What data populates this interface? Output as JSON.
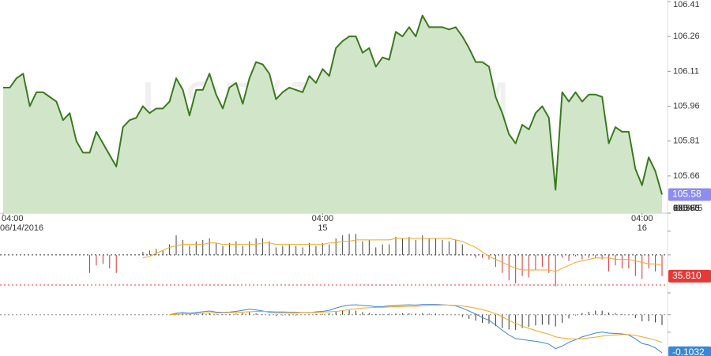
{
  "chart_data": [
    {
      "type": "area",
      "title": "USD/JPY,30M",
      "color": "#3a7a1e",
      "fill": "#d1e6c9",
      "xlim": [
        0,
        99
      ],
      "xticks": [
        {
          "value": 0,
          "label": "04:00"
        },
        {
          "value": 48,
          "label": "04:00"
        },
        {
          "value": 96,
          "label": "04:00"
        }
      ],
      "xtick_sublabels": [
        "06/14/2016",
        "15",
        "16"
      ],
      "ylim": [
        105.5,
        106.41
      ],
      "yticks": [
        106.41,
        106.26,
        106.11,
        105.96,
        105.81,
        105.66,
        {
          "value": 105.5,
          "label": "105.50"
        }
      ],
      "current_color": "#8c8cf2",
      "values": [
        106.04,
        106.04,
        106.08,
        106.1,
        105.96,
        106.02,
        106.02,
        106.0,
        105.98,
        105.9,
        105.93,
        105.81,
        105.76,
        105.76,
        105.85,
        105.8,
        105.75,
        105.7,
        105.87,
        105.9,
        105.91,
        105.96,
        105.93,
        105.95,
        105.95,
        105.98,
        106.08,
        106.03,
        105.92,
        106.03,
        106.03,
        106.1,
        106.01,
        105.95,
        106.04,
        106.06,
        105.97,
        106.08,
        106.15,
        106.14,
        106.1,
        105.99,
        106.02,
        106.04,
        106.03,
        106.02,
        106.09,
        106.06,
        106.12,
        106.09,
        106.21,
        106.24,
        106.26,
        106.26,
        106.19,
        106.21,
        106.13,
        106.17,
        106.16,
        106.28,
        106.26,
        106.3,
        106.26,
        106.35,
        106.3,
        106.3,
        106.3,
        106.29,
        106.3,
        106.26,
        106.21,
        106.15,
        106.15,
        106.13,
        106.0,
        105.93,
        105.84,
        105.8,
        105.88,
        105.86,
        105.93,
        105.96,
        105.91,
        105.6,
        106.02,
        105.98,
        106.02,
        105.98,
        106.01,
        106.01,
        106.0,
        105.8,
        105.87,
        105.85,
        105.85,
        105.69,
        105.62,
        105.74,
        105.68,
        105.58
      ]
    },
    {
      "type": "combo",
      "ylim": [
        24.2,
        69.4
      ],
      "yticks": [
        65.765,
        50
      ],
      "base": 50,
      "levels": [
        {
          "value": 50,
          "color": "#333333"
        },
        {
          "value": 30,
          "color": "#e53935"
        }
      ],
      "current": {
        "value": 35.81,
        "label": "35.810",
        "color": "#e53935"
      },
      "series": [
        {
          "type": "bar",
          "color": "#444444",
          "negative_color": "#d32f2f",
          "values": [
            null,
            null,
            null,
            null,
            null,
            null,
            null,
            null,
            null,
            null,
            null,
            null,
            null,
            38,
            43,
            44,
            41,
            38,
            null,
            null,
            null,
            52,
            53,
            54,
            53,
            57,
            63,
            60,
            56,
            59,
            60,
            61,
            58,
            56,
            58,
            59,
            56,
            59,
            61,
            61,
            59,
            55,
            56,
            57,
            56,
            55,
            58,
            56,
            58,
            57,
            61,
            63,
            64,
            64,
            59,
            60,
            55,
            57,
            57,
            62,
            61,
            62,
            60,
            63,
            61,
            61,
            60,
            59,
            60,
            57,
            null,
            48,
            48,
            47,
            42,
            38,
            33,
            31,
            36,
            35,
            40,
            42,
            38,
            29,
            48,
            46,
            49,
            47,
            48,
            48,
            47,
            39,
            43,
            41,
            41,
            36,
            34,
            41,
            39,
            35.81
          ]
        },
        {
          "type": "line",
          "color": "#f5a623",
          "values": [
            null,
            null,
            null,
            null,
            null,
            null,
            null,
            null,
            null,
            null,
            null,
            null,
            null,
            null,
            null,
            null,
            null,
            null,
            null,
            null,
            null,
            48,
            49,
            51,
            53,
            55,
            56,
            57,
            57,
            57,
            57,
            58,
            58,
            57,
            57,
            57,
            57,
            57,
            57,
            58,
            58,
            57,
            57,
            57,
            57,
            57,
            57,
            57,
            57,
            58,
            58,
            59,
            59,
            60,
            60,
            60,
            60,
            60,
            60,
            61,
            61,
            61,
            61,
            61,
            61,
            61,
            61,
            61,
            60,
            59,
            57,
            55,
            52,
            49,
            47,
            45,
            43,
            41,
            40,
            40,
            40,
            40,
            40,
            39,
            41,
            43,
            45,
            46,
            47,
            48,
            48,
            48,
            47,
            47,
            47,
            46,
            45,
            44,
            44,
            43
          ]
        }
      ]
    },
    {
      "type": "combo",
      "ylim": [
        -0.112,
        0.0593
      ],
      "yticks": [
        0.0593,
        0,
        -0.0475
      ],
      "base": 0,
      "levels": [
        {
          "value": 0,
          "color": "#888888"
        }
      ],
      "current_color": "#3a86d8",
      "series": [
        {
          "type": "bar",
          "color": "#333333",
          "negative_color": "#333333",
          "values": [
            null,
            null,
            null,
            null,
            null,
            null,
            null,
            null,
            null,
            null,
            null,
            null,
            null,
            null,
            null,
            null,
            null,
            null,
            null,
            null,
            null,
            null,
            null,
            null,
            null,
            0.0,
            0.003,
            0.004,
            0.002,
            0.003,
            0.004,
            0.005,
            0.002,
            0.001,
            0.001,
            0.003,
            0.005,
            0.007,
            0.004,
            0.001,
            -0.002,
            -0.003,
            -0.002,
            -0.002,
            -0.002,
            0.0,
            -0.001,
            0.002,
            0.002,
            0.004,
            0.009,
            0.012,
            0.012,
            0.011,
            0.007,
            0.005,
            0.002,
            0.002,
            0.003,
            0.003,
            0.004,
            0.004,
            0.003,
            0.004,
            0.003,
            0.003,
            0.001,
            0.0,
            -0.001,
            -0.006,
            -0.011,
            -0.016,
            -0.022,
            -0.024,
            -0.031,
            -0.036,
            -0.04,
            -0.041,
            -0.036,
            -0.033,
            -0.029,
            -0.027,
            -0.027,
            -0.032,
            -0.022,
            -0.01,
            -0.002,
            0.005,
            0.008,
            0.011,
            0.011,
            0.006,
            0.004,
            0.002,
            -0.001,
            -0.009,
            -0.018,
            -0.018,
            -0.021,
            -0.028
          ]
        },
        {
          "type": "line",
          "color": "#3a86d8",
          "values": [
            null,
            null,
            null,
            null,
            null,
            null,
            null,
            null,
            null,
            null,
            null,
            null,
            null,
            null,
            null,
            null,
            null,
            null,
            null,
            null,
            null,
            null,
            null,
            null,
            null,
            0.0,
            0.004,
            0.006,
            0.004,
            0.006,
            0.008,
            0.01,
            0.007,
            0.006,
            0.007,
            0.009,
            0.012,
            0.015,
            0.013,
            0.01,
            0.007,
            0.005,
            0.006,
            0.005,
            0.005,
            0.006,
            0.005,
            0.008,
            0.009,
            0.012,
            0.018,
            0.023,
            0.026,
            0.027,
            0.025,
            0.024,
            0.022,
            0.022,
            0.024,
            0.025,
            0.026,
            0.027,
            0.026,
            0.028,
            0.028,
            0.028,
            0.027,
            0.026,
            0.024,
            0.018,
            0.01,
            0.002,
            -0.008,
            -0.015,
            -0.028,
            -0.042,
            -0.055,
            -0.065,
            -0.067,
            -0.07,
            -0.072,
            -0.075,
            -0.08,
            -0.092,
            -0.085,
            -0.075,
            -0.068,
            -0.06,
            -0.055,
            -0.05,
            -0.047,
            -0.05,
            -0.051,
            -0.052,
            -0.055,
            -0.065,
            -0.078,
            -0.082,
            -0.09,
            -0.1032
          ]
        },
        {
          "type": "line",
          "color": "#f5a623",
          "values": [
            null,
            null,
            null,
            null,
            null,
            null,
            null,
            null,
            null,
            null,
            null,
            null,
            null,
            null,
            null,
            null,
            null,
            null,
            null,
            null,
            null,
            null,
            null,
            null,
            null,
            0.0,
            0.001,
            0.002,
            0.002,
            0.003,
            0.004,
            0.005,
            0.005,
            0.005,
            0.006,
            0.006,
            0.007,
            0.008,
            0.009,
            0.009,
            0.009,
            0.008,
            0.008,
            0.007,
            0.007,
            0.006,
            0.006,
            0.006,
            0.007,
            0.008,
            0.009,
            0.011,
            0.014,
            0.016,
            0.018,
            0.019,
            0.02,
            0.02,
            0.021,
            0.022,
            0.022,
            0.023,
            0.023,
            0.024,
            0.025,
            0.025,
            0.026,
            0.026,
            0.025,
            0.024,
            0.021,
            0.018,
            0.014,
            0.009,
            0.003,
            -0.006,
            -0.015,
            -0.024,
            -0.031,
            -0.037,
            -0.043,
            -0.048,
            -0.053,
            -0.06,
            -0.063,
            -0.065,
            -0.066,
            -0.065,
            -0.063,
            -0.061,
            -0.058,
            -0.056,
            -0.055,
            -0.054,
            -0.054,
            -0.056,
            -0.06,
            -0.064,
            -0.069,
            -0.075
          ]
        }
      ]
    }
  ]
}
